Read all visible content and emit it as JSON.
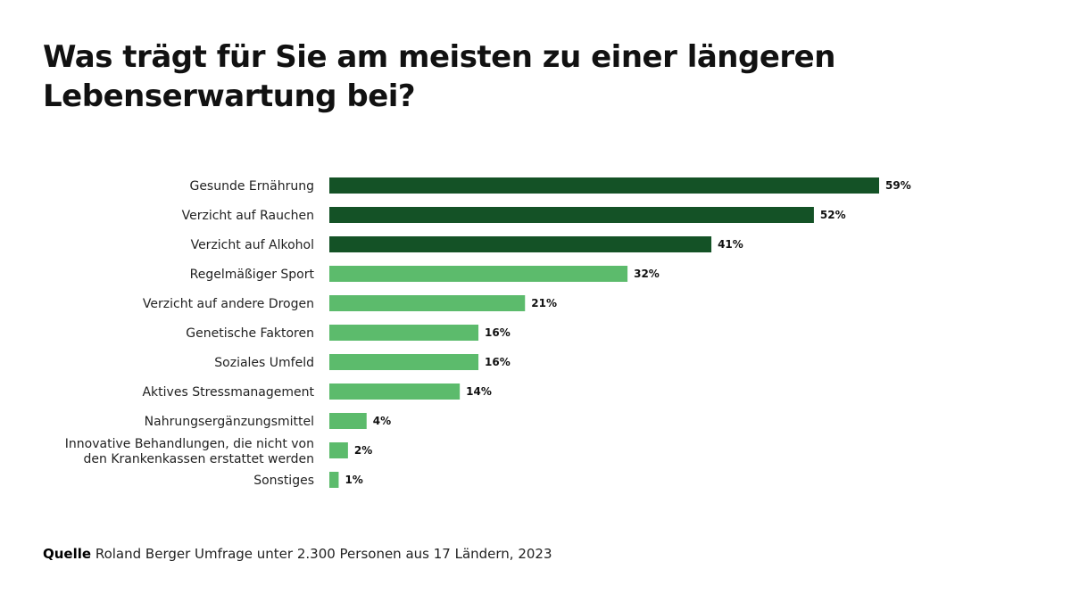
{
  "chart_data": {
    "type": "bar",
    "orientation": "horizontal",
    "title": "Was trägt für Sie am meisten zu einer längeren Lebenserwartung bei?",
    "categories": [
      "Gesunde Ernährung",
      "Verzicht auf Rauchen",
      "Verzicht auf Alkohol",
      "Regelmäßiger Sport",
      "Verzicht auf andere Drogen",
      "Genetische Faktoren",
      "Soziales Umfeld",
      "Aktives Stressmanagement",
      "Nahrungsergänzungsmittel",
      "Innovative Behandlungen, die nicht von|den Krankenkassen erstattet werden",
      "Sonstiges"
    ],
    "values": [
      59,
      52,
      41,
      32,
      21,
      16,
      16,
      14,
      4,
      2,
      1
    ],
    "value_labels": [
      "59%",
      "52%",
      "41%",
      "32%",
      "21%",
      "16%",
      "16%",
      "14%",
      "4%",
      "2%",
      "1%"
    ],
    "highlighted_count": 3,
    "colors": {
      "highlight": "#145226",
      "default": "#5cbb6c"
    },
    "unit": "%",
    "grid": false,
    "legend": "none"
  },
  "source": {
    "label": "Quelle",
    "text": "Roland Berger Umfrage unter 2.300 Personen aus 17 Ländern, 2023"
  }
}
